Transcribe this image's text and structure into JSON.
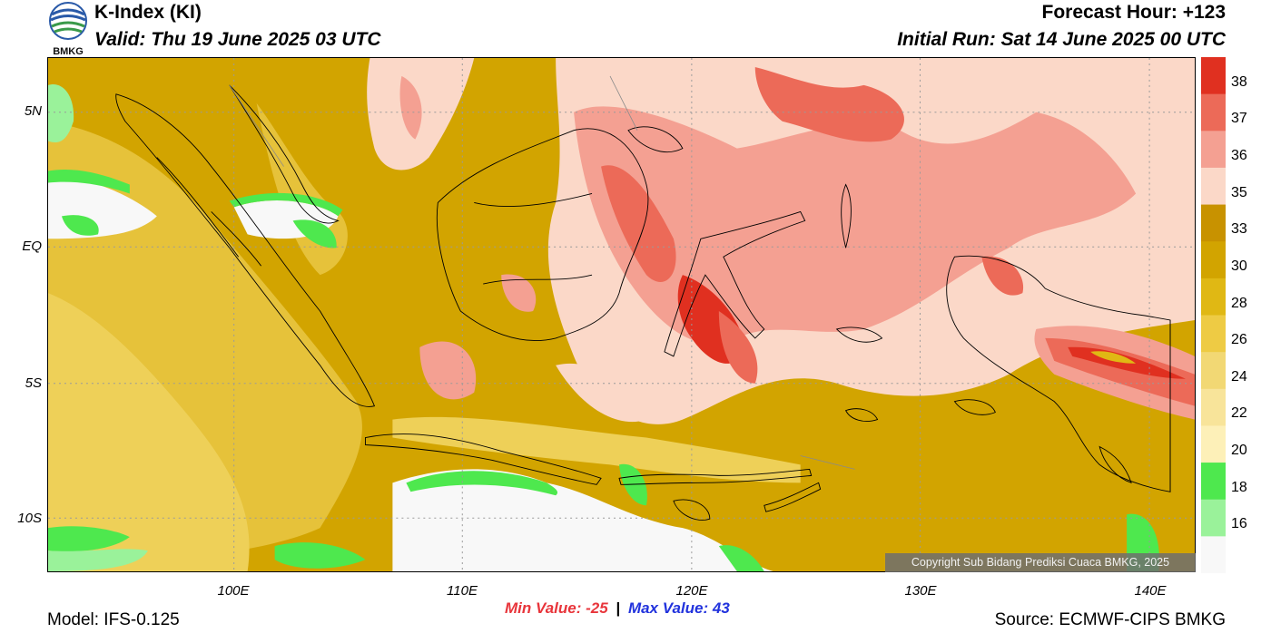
{
  "header": {
    "title": "K-Index (KI)",
    "valid": "Valid: Thu 19 June 2025 03 UTC",
    "forecast_hour": "Forecast Hour: +123",
    "initial_run": "Initial Run: Sat 14 June 2025 00 UTC"
  },
  "logo": {
    "text": "BMKG",
    "icon": "bmkg-logo-icon"
  },
  "map": {
    "lat_labels": [
      "5N",
      "EQ",
      "5S",
      "10S"
    ],
    "lon_labels": [
      "100E",
      "110E",
      "120E",
      "130E",
      "140E"
    ],
    "copyright": "Copyright Sub Bidang Prediksi Cuaca BMKG, 2025"
  },
  "stats": {
    "min_label": "Min Value:",
    "min_value": "-25",
    "separator": "|",
    "max_label": "Max Value:",
    "max_value": "43"
  },
  "footer": {
    "model": "Model: IFS-0.125",
    "source": "Source: ECMWF-CIPS BMKG"
  },
  "colorbar": {
    "labels": [
      "38",
      "37",
      "36",
      "35",
      "33",
      "30",
      "28",
      "26",
      "24",
      "22",
      "20",
      "18",
      "16"
    ],
    "colors": [
      "#e03020",
      "#ec6a58",
      "#f4a092",
      "#fbd8c8",
      "#c89200",
      "#d2a400",
      "#e0b814",
      "#eecb44",
      "#f2d874",
      "#f8e49a",
      "#fdf0b8",
      "#4ee84e",
      "#9af29a",
      "#f8f8f8"
    ]
  },
  "palette": {
    "land_outline": "#000000",
    "grid": "#9a9a9a",
    "copyright_bg": "#6e6e6e"
  }
}
